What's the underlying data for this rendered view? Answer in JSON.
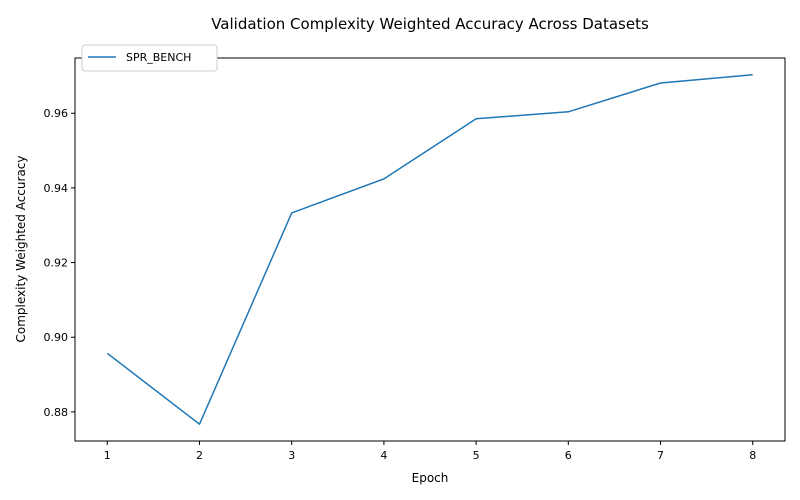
{
  "chart_data": {
    "type": "line",
    "title": "Validation Complexity Weighted Accuracy Across Datasets",
    "xlabel": "Epoch",
    "ylabel": "Complexity Weighted Accuracy",
    "x": [
      1,
      2,
      3,
      4,
      5,
      6,
      7,
      8
    ],
    "series": [
      {
        "name": "SPR_BENCH",
        "color": "#1f77b4",
        "values": [
          0.8957,
          0.8767,
          0.9333,
          0.9424,
          0.9585,
          0.9604,
          0.9681,
          0.9703
        ]
      }
    ],
    "xlim": [
      0.65,
      8.35
    ],
    "ylim": [
      0.8722,
      0.9748
    ],
    "xticks": [
      1,
      2,
      3,
      4,
      5,
      6,
      7,
      8
    ],
    "yticks": [
      0.88,
      0.9,
      0.92,
      0.94,
      0.96
    ],
    "ytick_labels": [
      "0.88",
      "0.90",
      "0.92",
      "0.94",
      "0.96"
    ],
    "grid": false,
    "legend_position": "top-left"
  }
}
